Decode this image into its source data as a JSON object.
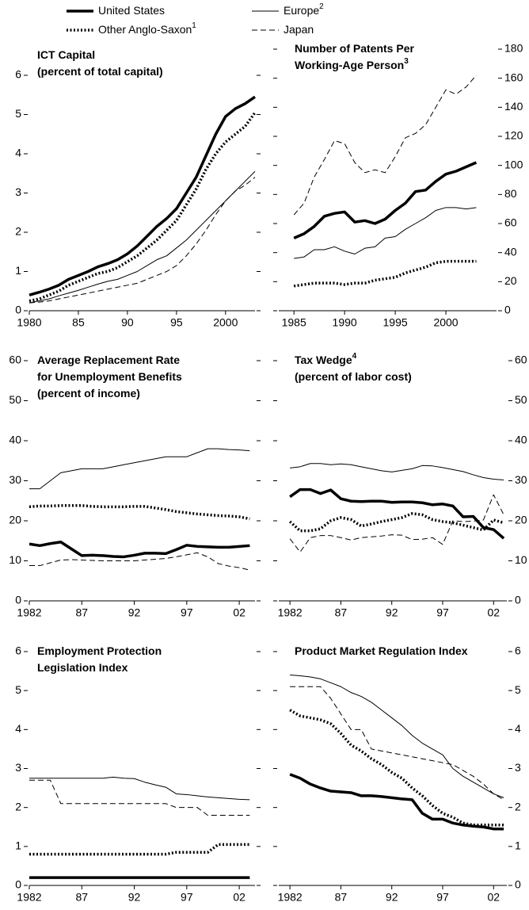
{
  "legend": [
    {
      "name": "United States",
      "style": "thick-solid"
    },
    {
      "name": "Other Anglo-Saxon",
      "note": "1",
      "style": "thick-dotted"
    },
    {
      "name": "Europe",
      "note": "2",
      "style": "thin-solid"
    },
    {
      "name": "Japan",
      "style": "thin-dashed"
    }
  ],
  "chart_data": [
    {
      "type": "line",
      "yaxis_side": "left",
      "title": [
        {
          "text": "ICT Capital"
        },
        {
          "text": "(percent of total capital)"
        }
      ],
      "x": [
        1980,
        1981,
        1982,
        1983,
        1984,
        1985,
        1986,
        1987,
        1988,
        1989,
        1990,
        1991,
        1992,
        1993,
        1994,
        1995,
        1996,
        1997,
        1998,
        1999,
        2000,
        2001,
        2002,
        2003
      ],
      "xlim": [
        1980,
        2003
      ],
      "xticks": [
        1980,
        {
          "value": 1985,
          "label": "85"
        },
        {
          "value": 1990,
          "label": "90"
        },
        {
          "value": 1995,
          "label": "95"
        },
        2000
      ],
      "ylim": [
        0,
        6
      ],
      "yticks": [
        0,
        1,
        2,
        3,
        4,
        5,
        6
      ],
      "series": [
        {
          "style": "thin-dashed",
          "values": [
            0.2,
            0.22,
            0.25,
            0.3,
            0.35,
            0.4,
            0.45,
            0.5,
            0.55,
            0.6,
            0.65,
            0.7,
            0.8,
            0.9,
            1.0,
            1.15,
            1.4,
            1.7,
            2.05,
            2.45,
            2.8,
            3.05,
            3.2,
            3.4
          ]
        },
        {
          "style": "thin-solid",
          "values": [
            0.2,
            0.25,
            0.3,
            0.38,
            0.45,
            0.52,
            0.6,
            0.68,
            0.75,
            0.8,
            0.9,
            1.0,
            1.15,
            1.3,
            1.4,
            1.6,
            1.8,
            2.05,
            2.3,
            2.55,
            2.8,
            3.05,
            3.3,
            3.55
          ]
        },
        {
          "style": "thick-dotted",
          "values": [
            0.25,
            0.3,
            0.4,
            0.5,
            0.65,
            0.75,
            0.85,
            0.95,
            1.0,
            1.1,
            1.25,
            1.4,
            1.6,
            1.8,
            2.05,
            2.3,
            2.7,
            3.1,
            3.6,
            4.0,
            4.3,
            4.5,
            4.7,
            5.05
          ]
        },
        {
          "style": "thick-solid",
          "values": [
            0.4,
            0.47,
            0.55,
            0.65,
            0.8,
            0.9,
            1.0,
            1.12,
            1.2,
            1.3,
            1.45,
            1.65,
            1.9,
            2.15,
            2.35,
            2.6,
            3.0,
            3.4,
            3.95,
            4.5,
            4.95,
            5.15,
            5.28,
            5.45
          ]
        }
      ]
    },
    {
      "type": "line",
      "yaxis_side": "right",
      "title": [
        {
          "text": "Number of Patents Per"
        },
        {
          "text": "Working-Age Person",
          "note": "3"
        }
      ],
      "x": [
        1985,
        1986,
        1987,
        1988,
        1989,
        1990,
        1991,
        1992,
        1993,
        1994,
        1995,
        1996,
        1997,
        1998,
        1999,
        2000,
        2001,
        2002,
        2003
      ],
      "xlim": [
        1983.5,
        2005
      ],
      "xticks": [
        1985,
        1990,
        1995,
        2000
      ],
      "ylim": [
        0,
        180
      ],
      "yticks": [
        0,
        20,
        40,
        60,
        80,
        100,
        120,
        140,
        160,
        180
      ],
      "series": [
        {
          "style": "thin-dashed",
          "values": [
            66,
            74,
            92,
            104,
            117,
            115,
            102,
            95,
            97,
            95,
            106,
            119,
            122,
            128,
            140,
            152,
            149,
            154,
            162
          ]
        },
        {
          "style": "thin-solid",
          "values": [
            36,
            37,
            42,
            42,
            44,
            41,
            39,
            43,
            44,
            50,
            51,
            56,
            60,
            64,
            69,
            71,
            71,
            70,
            71
          ]
        },
        {
          "style": "thick-dotted",
          "values": [
            17,
            18,
            19,
            19,
            19,
            18,
            19,
            19,
            21,
            22,
            23,
            26,
            28,
            30,
            33,
            34,
            34,
            34,
            34
          ]
        },
        {
          "style": "thick-solid",
          "values": [
            50,
            53,
            58,
            65,
            67,
            68,
            61,
            62,
            60,
            63,
            69,
            74,
            82,
            83,
            89,
            94,
            96,
            99,
            102
          ]
        }
      ]
    },
    {
      "type": "line",
      "yaxis_side": "left",
      "title": [
        {
          "text": "Average Replacement Rate"
        },
        {
          "text": "for Unemployment Benefits"
        },
        {
          "text": "(percent of income)"
        }
      ],
      "x": [
        1982,
        1983,
        1984,
        1985,
        1986,
        1987,
        1988,
        1989,
        1990,
        1991,
        1992,
        1993,
        1994,
        1995,
        1996,
        1997,
        1998,
        1999,
        2000,
        2001,
        2002,
        2003
      ],
      "xlim": [
        1982,
        2003.5
      ],
      "xticks": [
        1982,
        {
          "value": 1987,
          "label": "87"
        },
        {
          "value": 1992,
          "label": "92"
        },
        {
          "value": 1997,
          "label": "97"
        },
        {
          "value": 2002,
          "label": "02"
        }
      ],
      "ylim": [
        0,
        60
      ],
      "yticks": [
        0,
        10,
        20,
        30,
        40,
        50,
        60
      ],
      "series": [
        {
          "style": "thin-dashed",
          "values": [
            8.8,
            8.8,
            9.5,
            10.2,
            10.3,
            10.2,
            10.1,
            10,
            10,
            10,
            10,
            10.2,
            10.4,
            10.6,
            11,
            11.5,
            12,
            11,
            9.3,
            8.7,
            8.3,
            7.7
          ]
        },
        {
          "style": "thin-solid",
          "values": [
            28,
            28,
            30,
            32,
            32.5,
            33,
            33,
            33,
            33.5,
            34,
            34.5,
            35,
            35.5,
            36,
            36,
            36,
            37,
            38,
            38,
            37.8,
            37.7,
            37.5
          ]
        },
        {
          "style": "thick-dotted",
          "values": [
            23.5,
            23.7,
            23.7,
            23.8,
            23.8,
            23.8,
            23.6,
            23.5,
            23.5,
            23.5,
            23.6,
            23.6,
            23.2,
            22.8,
            22.3,
            22,
            21.7,
            21.5,
            21.3,
            21.2,
            21,
            20.5
          ]
        },
        {
          "style": "thick-solid",
          "values": [
            14.2,
            13.8,
            14.3,
            14.7,
            13,
            11.3,
            11.4,
            11.3,
            11.1,
            11,
            11.4,
            11.9,
            11.9,
            11.8,
            12.8,
            13.9,
            13.6,
            13.5,
            13.4,
            13.4,
            13.6,
            13.8
          ]
        }
      ]
    },
    {
      "type": "line",
      "yaxis_side": "right",
      "title": [
        {
          "text": "Tax Wedge",
          "note": "4"
        },
        {
          "text": "(percent of labor cost)"
        }
      ],
      "x": [
        1982,
        1983,
        1984,
        1985,
        1986,
        1987,
        1988,
        1989,
        1990,
        1991,
        1992,
        1993,
        1994,
        1995,
        1996,
        1997,
        1998,
        1999,
        2000,
        2001,
        2002,
        2003
      ],
      "xlim": [
        1980.9,
        2003.3
      ],
      "xticks": [
        1982,
        {
          "value": 1987,
          "label": "87"
        },
        {
          "value": 1992,
          "label": "92"
        },
        {
          "value": 1997,
          "label": "97"
        },
        {
          "value": 2002,
          "label": "02"
        }
      ],
      "ylim": [
        0,
        60
      ],
      "yticks": [
        0,
        10,
        20,
        30,
        40,
        50,
        60
      ],
      "series": [
        {
          "style": "thin-dashed",
          "values": [
            15.5,
            12.2,
            15.8,
            16.3,
            16.3,
            15.8,
            15.2,
            15.8,
            16,
            16.2,
            16.5,
            16.4,
            15.3,
            15.4,
            15.8,
            14.1,
            20,
            19.8,
            19.9,
            20.2,
            26.5,
            21.5
          ]
        },
        {
          "style": "thin-solid",
          "values": [
            33.2,
            33.5,
            34.3,
            34.3,
            34,
            34.2,
            34,
            33.5,
            33,
            32.5,
            32.2,
            32.6,
            33,
            33.8,
            33.7,
            33.3,
            32.8,
            32.3,
            31.5,
            30.8,
            30.4,
            30.2
          ]
        },
        {
          "style": "thick-dotted",
          "values": [
            19.8,
            17.5,
            17.5,
            18,
            20,
            20.8,
            20.3,
            18.7,
            19.2,
            19.8,
            20.3,
            20.8,
            21.8,
            21.5,
            20.3,
            19.8,
            19.5,
            18.9,
            18.3,
            17.7,
            20.2,
            19.5
          ]
        },
        {
          "style": "thick-solid",
          "values": [
            26,
            27.8,
            27.8,
            26.8,
            27.7,
            25.5,
            24.9,
            24.8,
            24.9,
            24.9,
            24.6,
            24.7,
            24.7,
            24.5,
            24,
            24.2,
            23.7,
            21,
            21.1,
            18.3,
            17.8,
            15.6
          ]
        }
      ]
    },
    {
      "type": "line",
      "yaxis_side": "left",
      "title": [
        {
          "text": "Employment Protection"
        },
        {
          "text": "Legislation Index"
        }
      ],
      "x": [
        1982,
        1983,
        1984,
        1985,
        1986,
        1987,
        1988,
        1989,
        1990,
        1991,
        1992,
        1993,
        1994,
        1995,
        1996,
        1997,
        1998,
        1999,
        2000,
        2001,
        2002,
        2003
      ],
      "xlim": [
        1982,
        2003.5
      ],
      "xticks": [
        1982,
        {
          "value": 1987,
          "label": "87"
        },
        {
          "value": 1992,
          "label": "92"
        },
        {
          "value": 1997,
          "label": "97"
        },
        {
          "value": 2002,
          "label": "02"
        }
      ],
      "ylim": [
        0,
        6
      ],
      "yticks": [
        0,
        1,
        2,
        3,
        4,
        5,
        6
      ],
      "series": [
        {
          "style": "thin-dashed",
          "values": [
            2.7,
            2.7,
            2.7,
            2.1,
            2.1,
            2.1,
            2.1,
            2.1,
            2.1,
            2.1,
            2.1,
            2.1,
            2.1,
            2.1,
            2.0,
            2.0,
            2.0,
            1.8,
            1.8,
            1.8,
            1.8,
            1.8
          ]
        },
        {
          "style": "thin-solid",
          "values": [
            2.75,
            2.75,
            2.75,
            2.75,
            2.75,
            2.75,
            2.75,
            2.75,
            2.78,
            2.75,
            2.74,
            2.65,
            2.58,
            2.52,
            2.35,
            2.33,
            2.3,
            2.27,
            2.25,
            2.23,
            2.21,
            2.2
          ]
        },
        {
          "style": "thick-dotted",
          "values": [
            0.8,
            0.8,
            0.8,
            0.8,
            0.8,
            0.8,
            0.8,
            0.8,
            0.8,
            0.8,
            0.8,
            0.8,
            0.8,
            0.8,
            0.85,
            0.85,
            0.85,
            0.85,
            1.05,
            1.05,
            1.05,
            1.05
          ]
        },
        {
          "style": "thick-solid",
          "values": [
            0.2,
            0.2,
            0.2,
            0.2,
            0.2,
            0.2,
            0.2,
            0.2,
            0.2,
            0.2,
            0.2,
            0.2,
            0.2,
            0.2,
            0.2,
            0.2,
            0.2,
            0.2,
            0.2,
            0.2,
            0.2,
            0.2
          ]
        }
      ]
    },
    {
      "type": "line",
      "yaxis_side": "right",
      "title": [
        {
          "text": "Product Market Regulation Index"
        }
      ],
      "x": [
        1982,
        1983,
        1984,
        1985,
        1986,
        1987,
        1988,
        1989,
        1990,
        1991,
        1992,
        1993,
        1994,
        1995,
        1996,
        1997,
        1998,
        1999,
        2000,
        2001,
        2002,
        2003
      ],
      "xlim": [
        1980.9,
        2003.3
      ],
      "xticks": [
        1982,
        {
          "value": 1987,
          "label": "87"
        },
        {
          "value": 1992,
          "label": "92"
        },
        {
          "value": 1997,
          "label": "97"
        },
        {
          "value": 2002,
          "label": "02"
        }
      ],
      "ylim": [
        0,
        6
      ],
      "yticks": [
        0,
        1,
        2,
        3,
        4,
        5,
        6
      ],
      "series": [
        {
          "style": "thin-dashed",
          "values": [
            5.1,
            5.1,
            5.1,
            5.1,
            4.8,
            4.4,
            4.0,
            4.0,
            3.5,
            3.45,
            3.4,
            3.35,
            3.3,
            3.25,
            3.2,
            3.15,
            3.1,
            2.95,
            2.8,
            2.6,
            2.35,
            2.2
          ]
        },
        {
          "style": "thin-solid",
          "values": [
            5.4,
            5.38,
            5.35,
            5.3,
            5.2,
            5.1,
            4.95,
            4.85,
            4.7,
            4.5,
            4.3,
            4.1,
            3.85,
            3.65,
            3.5,
            3.35,
            3.0,
            2.8,
            2.65,
            2.5,
            2.35,
            2.25
          ]
        },
        {
          "style": "thick-dotted",
          "values": [
            4.5,
            4.35,
            4.3,
            4.25,
            4.15,
            3.9,
            3.6,
            3.45,
            3.25,
            3.1,
            2.9,
            2.75,
            2.5,
            2.3,
            2.05,
            1.85,
            1.75,
            1.6,
            1.55,
            1.55,
            1.55,
            1.55
          ]
        },
        {
          "style": "thick-solid",
          "values": [
            2.85,
            2.75,
            2.6,
            2.5,
            2.42,
            2.4,
            2.38,
            2.3,
            2.3,
            2.28,
            2.25,
            2.22,
            2.2,
            1.85,
            1.7,
            1.7,
            1.6,
            1.55,
            1.52,
            1.5,
            1.45,
            1.45
          ]
        }
      ]
    }
  ]
}
